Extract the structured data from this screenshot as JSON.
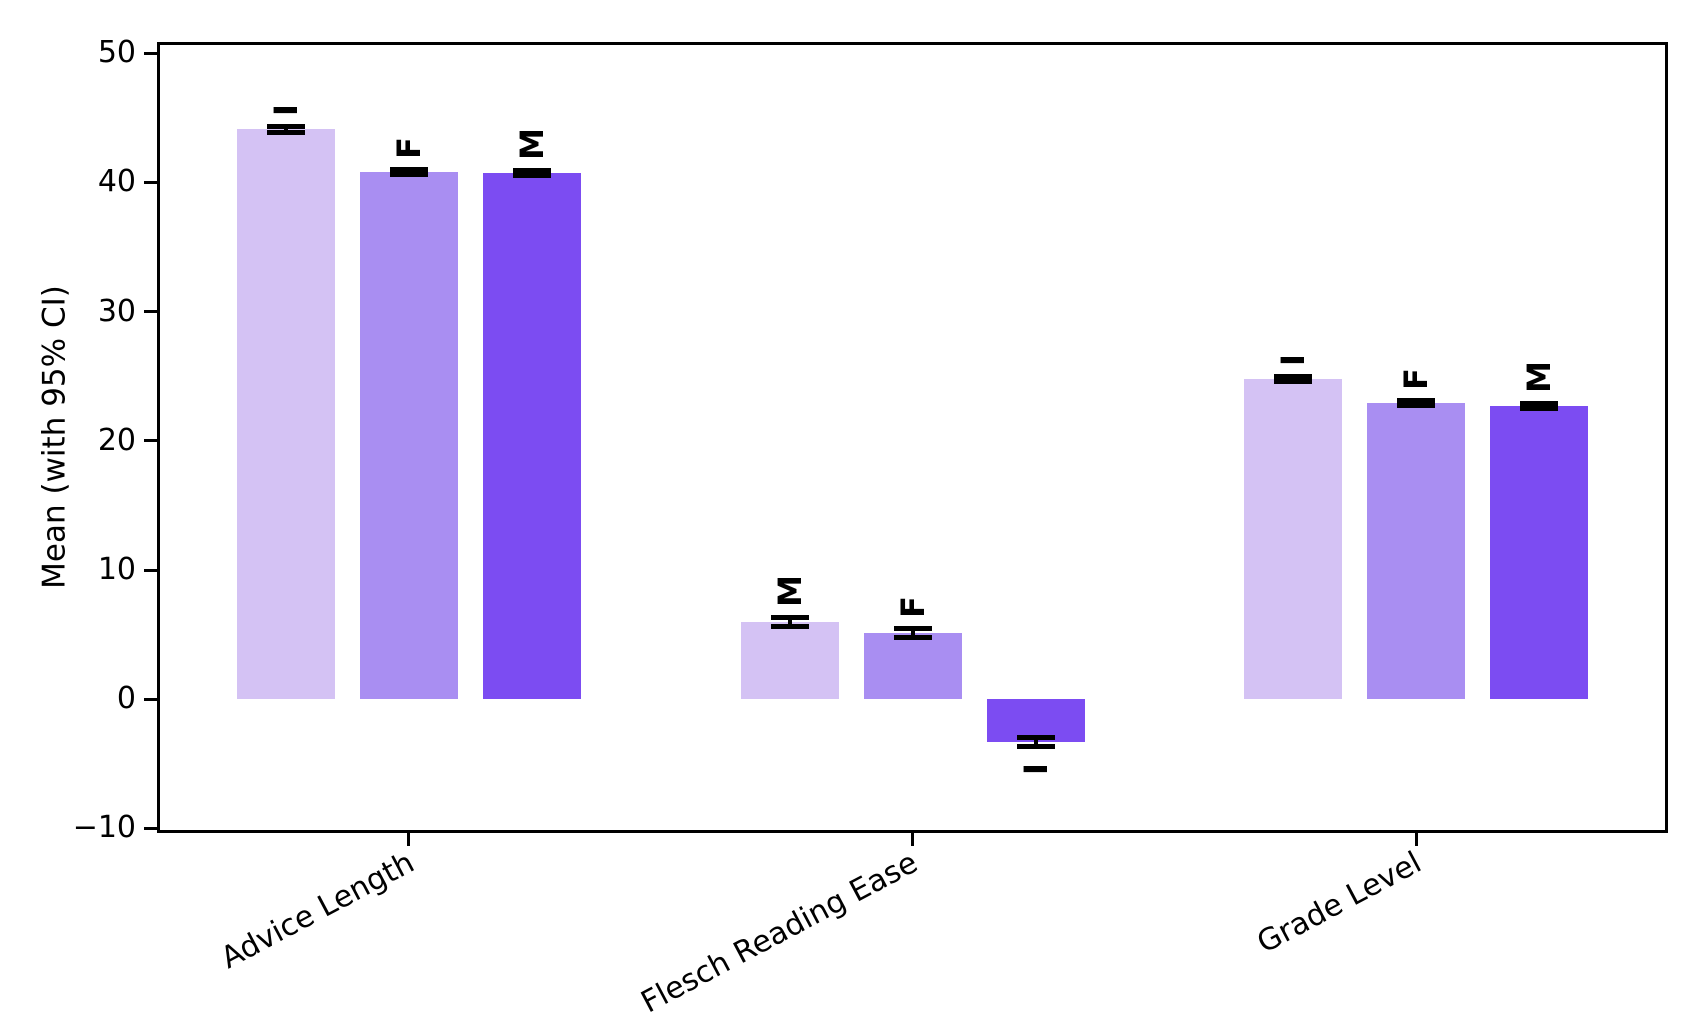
{
  "chart_data": {
    "type": "bar",
    "title": "",
    "xlabel": "",
    "ylabel": "Mean (with 95% CI)",
    "ylim": [
      -10.35,
      50.87
    ],
    "yticks": [
      50,
      40,
      30,
      20,
      10,
      0,
      -10
    ],
    "grid": false,
    "legend": "none",
    "bar_label_rotation_deg": 90,
    "xtick_label_rotation_deg": 28,
    "error_bars": "95% CI",
    "categories": [
      "Advice Length",
      "Flesch Reading Ease",
      "Grade Level"
    ],
    "groups": [
      {
        "category": "Advice Length",
        "bars": [
          {
            "label": "I",
            "value": 44.1,
            "ci": 0.2,
            "color_key": "light"
          },
          {
            "label": "F",
            "value": 40.8,
            "ci": 0.2,
            "color_key": "medium"
          },
          {
            "label": "M",
            "value": 40.7,
            "ci": 0.2,
            "color_key": "dark"
          }
        ]
      },
      {
        "category": "Flesch Reading Ease",
        "bars": [
          {
            "label": "M",
            "value": 6.0,
            "ci": 0.35,
            "color_key": "light"
          },
          {
            "label": "F",
            "value": 5.1,
            "ci": 0.35,
            "color_key": "medium"
          },
          {
            "label": "I",
            "value": -3.3,
            "ci": 0.35,
            "color_key": "dark"
          }
        ]
      },
      {
        "category": "Grade Level",
        "bars": [
          {
            "label": "I",
            "value": 24.8,
            "ci": 0.2,
            "color_key": "light"
          },
          {
            "label": "F",
            "value": 22.9,
            "ci": 0.2,
            "color_key": "medium"
          },
          {
            "label": "M",
            "value": 22.7,
            "ci": 0.2,
            "color_key": "dark"
          }
        ]
      }
    ],
    "colors": {
      "light": "#d4c2f4",
      "medium": "#a98ef2",
      "dark": "#7c4cf2",
      "error_bar": "#000000",
      "axis": "#000000",
      "text": "#000000",
      "background": "#ffffff"
    }
  }
}
